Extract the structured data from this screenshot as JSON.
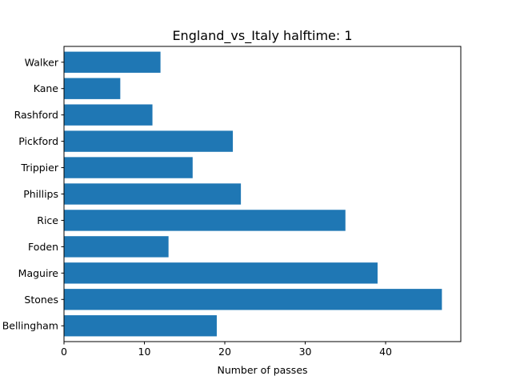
{
  "chart_data": {
    "type": "bar",
    "orientation": "horizontal",
    "title": "England_vs_Italy halftime: 1",
    "xlabel": "Number of passes",
    "ylabel": "",
    "categories": [
      "Walker",
      "Kane",
      "Rashford",
      "Pickford",
      "Trippier",
      "Phillips",
      "Rice",
      "Foden",
      "Maguire",
      "Stones",
      "Bellingham"
    ],
    "values": [
      12,
      7,
      11,
      21,
      16,
      22,
      35,
      13,
      39,
      47,
      19
    ],
    "xlim": [
      0,
      49.35
    ],
    "xticks": [
      0,
      10,
      20,
      30,
      40
    ],
    "bar_color": "#1f77b4",
    "grid": false,
    "legend": "none"
  }
}
